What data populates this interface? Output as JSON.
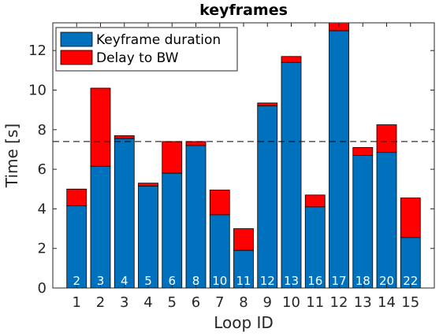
{
  "chart_data": {
    "type": "bar",
    "stacked": true,
    "title": "keyframes",
    "xlabel": "Loop ID",
    "ylabel": "Time [s]",
    "ylim": [
      0,
      13.4
    ],
    "yticks": [
      0,
      2,
      4,
      6,
      8,
      10,
      12
    ],
    "grid": false,
    "legend_position": "top-left",
    "categories": [
      "1",
      "2",
      "3",
      "4",
      "5",
      "6",
      "7",
      "8",
      "9",
      "10",
      "11",
      "12",
      "13",
      "14",
      "15"
    ],
    "bar_labels": [
      "2",
      "3",
      "4",
      "5",
      "6",
      "8",
      "10",
      "11",
      "12",
      "13",
      "16",
      "17",
      "18",
      "20",
      "22"
    ],
    "series": [
      {
        "name": "Keyframe duration",
        "color": "#0072BD",
        "values": [
          4.15,
          6.15,
          7.55,
          5.15,
          5.8,
          7.2,
          3.7,
          1.9,
          9.2,
          11.4,
          4.1,
          13.0,
          6.7,
          6.85,
          2.55
        ]
      },
      {
        "name": "Delay to BW",
        "color": "#FF0000",
        "values": [
          0.85,
          3.95,
          0.15,
          0.15,
          1.6,
          0.2,
          1.25,
          1.1,
          0.15,
          0.3,
          0.6,
          0.6,
          0.4,
          1.4,
          2.0
        ]
      }
    ],
    "reference_line": {
      "y": 7.4,
      "style": "dashed",
      "color": "#000000"
    }
  }
}
